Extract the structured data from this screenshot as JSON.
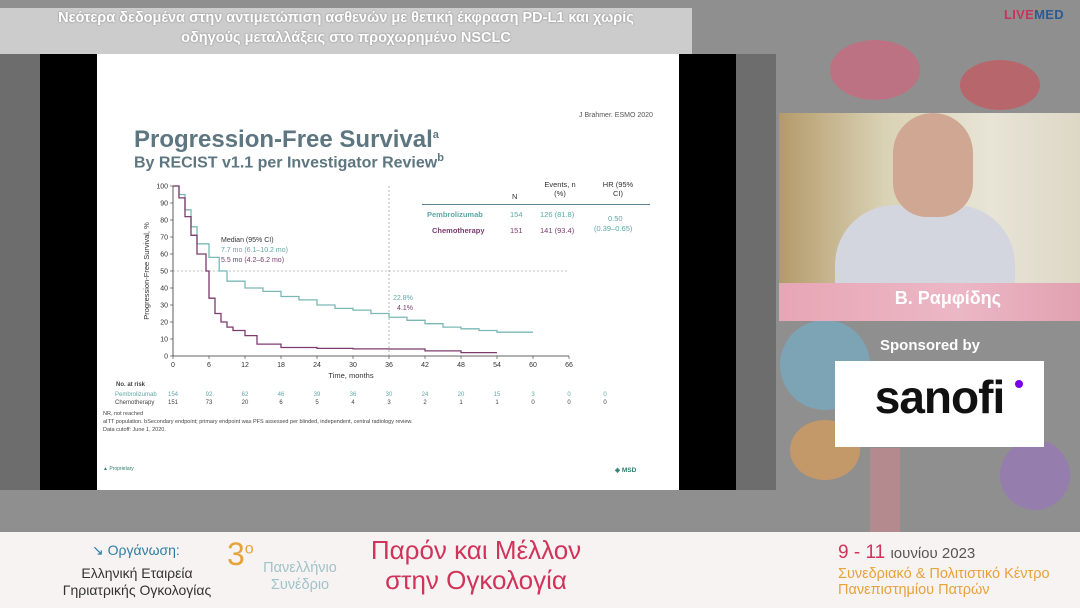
{
  "header": {
    "title_line1": "Νεότερα δεδομένα στην αντιμετώπιση ασθενών με θετική έκφραση PD-L1 και χωρίς",
    "title_line2": "οδηγούς μεταλλάξεις στο προχωρημένο NSCLC",
    "brand_live": "LIVE",
    "brand_med": "MED"
  },
  "slide": {
    "reference": "J Brahmer. ESMO 2020",
    "title": "Progression-Free Survival",
    "title_sup": "a",
    "subtitle": "By RECIST v1.1 per Investigator Review",
    "subtitle_sup": "b",
    "table": {
      "headers": [
        "N",
        "Events, n (%)",
        "HR (95% CI)"
      ],
      "rows": [
        {
          "name": "Pembrolizumab",
          "n": "154",
          "events": "126 (81.8)"
        },
        {
          "name": "Chemotherapy",
          "n": "151",
          "events": "141 (93.4)"
        }
      ],
      "hr": "0.50",
      "hr_ci": "(0.39–0.65)"
    },
    "median_label": "Median (95% CI)",
    "median_pembro": "7.7 mo (6.1–10.2 mo)",
    "median_chemo": "5.5 mo (4.2–6.2 mo)",
    "pct_pembro": "22.8%",
    "pct_chemo": "4.1%",
    "at_risk_label": "No. at risk",
    "at_risk": [
      {
        "name": "Pembrolizumab",
        "values": [
          "154",
          "92",
          "62",
          "46",
          "39",
          "36",
          "30",
          "24",
          "20",
          "15",
          "3",
          "0",
          "0"
        ]
      },
      {
        "name": "Chemotherapy",
        "values": [
          "151",
          "73",
          "20",
          "6",
          "5",
          "4",
          "3",
          "2",
          "1",
          "1",
          "0",
          "0",
          "0"
        ]
      }
    ],
    "footnote1": "NR, not reached",
    "footnote2": "aITT population. bSecondary endpoint; primary endpoint was PFS assessed per blinded, independent, central radiology review.",
    "footnote3": "Data cutoff: June 1, 2020.",
    "proprietary": "Proprietary",
    "msd": "MSD"
  },
  "chart_data": {
    "type": "line",
    "xlabel": "Time, months",
    "ylabel": "Progression-Free Survival, %",
    "xlim": [
      0,
      66
    ],
    "ylim": [
      0,
      100
    ],
    "xticks": [
      0,
      6,
      12,
      18,
      24,
      30,
      36,
      42,
      48,
      54,
      60,
      66
    ],
    "yticks": [
      0,
      10,
      20,
      30,
      40,
      50,
      60,
      70,
      80,
      90,
      100
    ],
    "series": [
      {
        "name": "Pembrolizumab",
        "color": "#7ab8b6",
        "x": [
          0,
          1,
          2,
          3,
          4,
          6,
          7.7,
          9,
          12,
          15,
          18,
          21,
          24,
          27,
          30,
          33,
          36,
          39,
          42,
          45,
          48,
          51,
          54,
          57,
          60
        ],
        "y": [
          100,
          95,
          86,
          76,
          66,
          58,
          50,
          44,
          40,
          38,
          35,
          33,
          30,
          28,
          27,
          25,
          22.8,
          21,
          19,
          17,
          16,
          15,
          14,
          14,
          14
        ]
      },
      {
        "name": "Chemotherapy",
        "color": "#7b3b6e",
        "x": [
          0,
          1,
          2,
          3,
          4,
          5.5,
          6,
          7,
          8,
          9,
          10,
          12,
          14,
          18,
          24,
          30,
          36,
          42,
          48,
          54
        ],
        "y": [
          100,
          93,
          82,
          71,
          60,
          50,
          34,
          25,
          20,
          17,
          15,
          12,
          7,
          5,
          4.5,
          4.2,
          4.1,
          3,
          2,
          2
        ]
      }
    ]
  },
  "speaker": {
    "name": "Β. Ραμφίδης",
    "sponsored_by": "Sponsored by",
    "sponsor_name": "sanofi"
  },
  "footer": {
    "org_label": "Οργάνωση:",
    "org_line1": "Ελληνική Εταιρεία",
    "org_line2": "Γηριατρικής Ογκολογίας",
    "congress_num": "3",
    "congress_sup": "ο",
    "congress_line1": "Πανελλήνιο",
    "congress_line2": "Συνέδριο",
    "title_line1": "Παρόν και Μέλλον",
    "title_line2": "στην Ογκολογία",
    "dates": "9 - 11",
    "dates_month": "ιουνίου 2023",
    "venue_line1": "Συνεδριακό & Πολιτιστικό Κέντρο",
    "venue_line2": "Πανεπιστημίου Πατρών"
  },
  "colors": {
    "pembrolizumab": "#7ab8b6",
    "chemotherapy": "#7b3b6e",
    "accent_pink": "#d1345b",
    "accent_blue": "#2c7fa2",
    "accent_orange": "#e8a23a"
  }
}
